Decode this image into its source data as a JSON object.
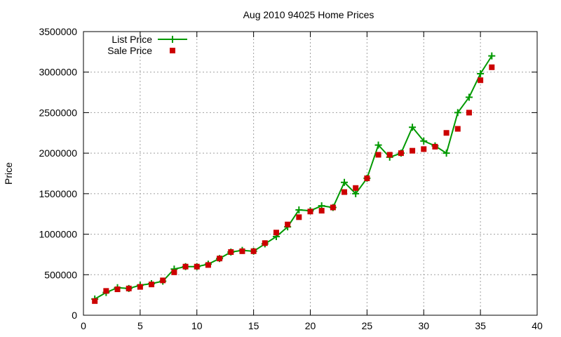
{
  "chart_data": {
    "type": "line",
    "title": "Aug 2010 94025 Home Prices",
    "xlabel": "",
    "ylabel": "Price",
    "xlim": [
      0,
      40
    ],
    "ylim": [
      0,
      3500000
    ],
    "xticks": [
      "0",
      "5",
      "10",
      "15",
      "20",
      "25",
      "30",
      "35",
      "40"
    ],
    "yticks": [
      "0",
      "500000",
      "1000000",
      "1500000",
      "2000000",
      "2500000",
      "3000000",
      "3500000"
    ],
    "grid": true,
    "legend_position": "top-left",
    "series": [
      {
        "name": "List Price",
        "style": "line-with-plus-markers",
        "color": "#009900",
        "x": [
          1,
          2,
          3,
          4,
          5,
          6,
          7,
          8,
          9,
          10,
          11,
          12,
          13,
          14,
          15,
          16,
          17,
          18,
          19,
          20,
          21,
          22,
          23,
          24,
          25,
          26,
          27,
          28,
          29,
          30,
          31,
          32,
          33,
          34,
          35,
          36
        ],
        "y": [
          200000,
          280000,
          340000,
          330000,
          370000,
          390000,
          420000,
          570000,
          600000,
          600000,
          630000,
          700000,
          780000,
          800000,
          790000,
          880000,
          970000,
          1090000,
          1300000,
          1290000,
          1350000,
          1330000,
          1640000,
          1500000,
          1690000,
          2100000,
          1950000,
          2000000,
          2320000,
          2150000,
          2090000,
          2000000,
          2500000,
          2690000,
          2980000,
          3200000
        ]
      },
      {
        "name": "Sale Price",
        "style": "square-markers",
        "color": "#cc0000",
        "x": [
          1,
          2,
          3,
          4,
          5,
          6,
          7,
          8,
          9,
          10,
          11,
          12,
          13,
          14,
          15,
          16,
          17,
          18,
          19,
          20,
          21,
          22,
          23,
          24,
          25,
          26,
          27,
          28,
          29,
          30,
          31,
          32,
          33,
          34,
          35,
          36
        ],
        "y": [
          175000,
          300000,
          320000,
          330000,
          350000,
          380000,
          430000,
          530000,
          600000,
          600000,
          620000,
          700000,
          780000,
          790000,
          790000,
          890000,
          1020000,
          1120000,
          1210000,
          1280000,
          1290000,
          1330000,
          1520000,
          1570000,
          1690000,
          1980000,
          1980000,
          2000000,
          2030000,
          2050000,
          2080000,
          2250000,
          2300000,
          2500000,
          2900000,
          3060000
        ]
      }
    ]
  }
}
